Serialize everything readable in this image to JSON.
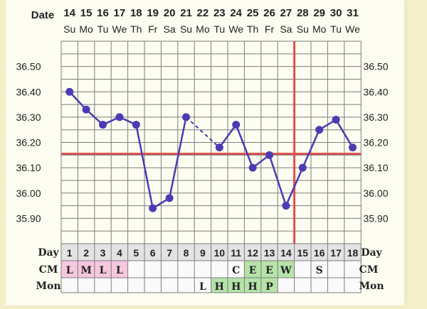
{
  "colors": {
    "grid": "#7c7c7c",
    "line": "#4b3bb5",
    "coverline": "#d9534f",
    "bg": "#fefdf1",
    "pink": "#f6c7dd",
    "green": "#b5e3a8",
    "text": "#222222"
  },
  "labels": {
    "date": "Date",
    "day": "Day",
    "cm": "CM",
    "mon": "Mon"
  },
  "chart_data": {
    "type": "line",
    "dates": [
      "14",
      "15",
      "16",
      "17",
      "18",
      "19",
      "20",
      "21",
      "22",
      "23",
      "24",
      "25",
      "26",
      "27",
      "28",
      "29",
      "30",
      "31"
    ],
    "weekdays": [
      "Su",
      "Mo",
      "Tu",
      "We",
      "Th",
      "Fr",
      "Sa",
      "Su",
      "Mo",
      "Tu",
      "We",
      "Th",
      "Fr",
      "Sa",
      "Su",
      "Mo",
      "Tu",
      "We"
    ],
    "cycle_days": [
      "1",
      "2",
      "3",
      "4",
      "5",
      "6",
      "7",
      "8",
      "9",
      "10",
      "11",
      "12",
      "13",
      "14",
      "15",
      "16",
      "17",
      "18"
    ],
    "temperatures": [
      36.4,
      36.33,
      36.27,
      36.3,
      36.27,
      35.94,
      35.98,
      36.3,
      null,
      36.18,
      36.27,
      36.1,
      36.15,
      35.95,
      36.1,
      36.25,
      36.29,
      36.18
    ],
    "gap_bridge": {
      "from_index": 7,
      "to_index": 9,
      "style": "dashed"
    },
    "y_ticks": [
      "36.50",
      "36.40",
      "36.30",
      "36.20",
      "36.10",
      "36.00",
      "35.90"
    ],
    "ylim": [
      35.8,
      36.6
    ],
    "coverline_value": 36.155,
    "ovulation_marker_after_day_index": 14,
    "cm_row": [
      "L",
      "M",
      "L",
      "L",
      "",
      "",
      "",
      "",
      "",
      "",
      "C",
      "E",
      "E",
      "W",
      "",
      "S",
      "",
      ""
    ],
    "cm_colors": [
      "pink",
      "pink",
      "pink",
      "pink",
      "",
      "",
      "",
      "",
      "",
      "",
      "",
      "green",
      "green",
      "green",
      "",
      "",
      "",
      ""
    ],
    "mon_row": [
      "",
      "",
      "",
      "",
      "",
      "",
      "",
      "",
      "L",
      "H",
      "H",
      "H",
      "P",
      "",
      "",
      "",
      "",
      ""
    ],
    "mon_colors": [
      "",
      "",
      "",
      "",
      "",
      "",
      "",
      "",
      "",
      "green",
      "green",
      "green",
      "green",
      "",
      "",
      "",
      "",
      ""
    ]
  }
}
